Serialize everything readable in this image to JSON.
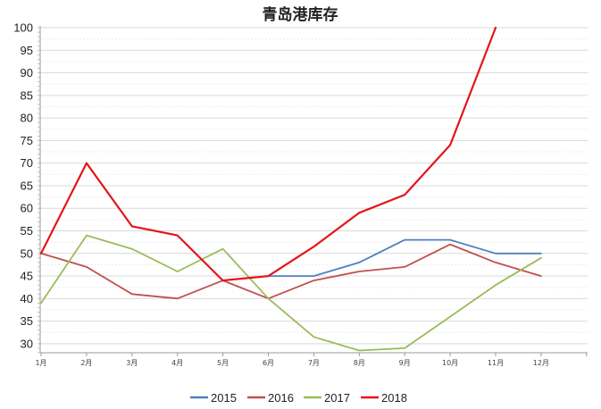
{
  "chart_data": {
    "type": "line",
    "title": "青岛港库存",
    "categories": [
      "1月",
      "2月",
      "3月",
      "4月",
      "5月",
      "6月",
      "7月",
      "8月",
      "9月",
      "10月",
      "11月",
      "12月"
    ],
    "ylim": [
      28,
      100
    ],
    "yticks": [
      30,
      35,
      40,
      45,
      50,
      55,
      60,
      65,
      70,
      75,
      80,
      85,
      90,
      95,
      100
    ],
    "grid": true,
    "legend_position": "bottom",
    "series": [
      {
        "name": "2015",
        "color": "#4f81bd",
        "values": [
          null,
          null,
          null,
          null,
          null,
          45,
          45,
          48,
          53,
          53,
          50,
          50
        ]
      },
      {
        "name": "2016",
        "color": "#c0504d",
        "values": [
          50,
          47,
          41,
          40,
          44,
          40,
          44,
          46,
          47,
          52,
          48,
          45
        ]
      },
      {
        "name": "2017",
        "color": "#9bbb59",
        "values": [
          39,
          54,
          51,
          46,
          51,
          40,
          31.5,
          28.5,
          29,
          36,
          43,
          49
        ]
      },
      {
        "name": "2018",
        "color": "#e3151a",
        "values": [
          50,
          70,
          56,
          54,
          44,
          45,
          51.5,
          59,
          63,
          74,
          100,
          null
        ]
      }
    ]
  }
}
